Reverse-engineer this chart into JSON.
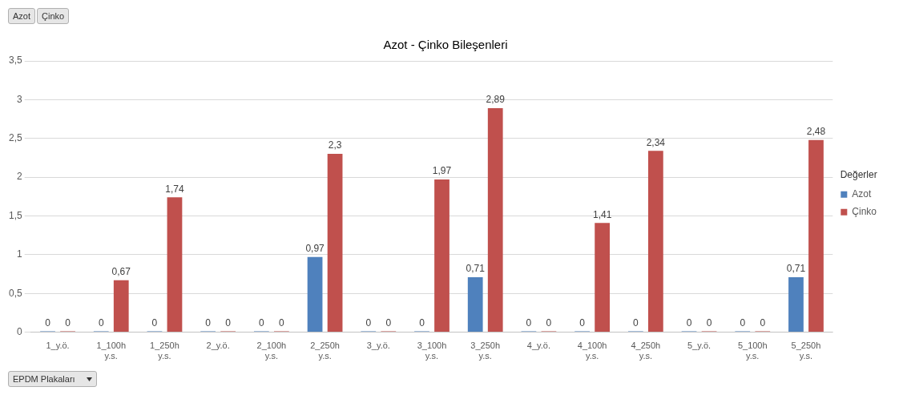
{
  "chart_data": {
    "type": "bar",
    "title": "Azot - Çinko Bileşenleri",
    "legend_title": "Değerler",
    "categories": [
      "1_y.ö.",
      "1_100h y.s.",
      "1_250h y.s.",
      "2_y.ö.",
      "2_100h y.s.",
      "2_250h y.s.",
      "3_y.ö.",
      "3_100h y.s.",
      "3_250h y.s.",
      "4_y.ö.",
      "4_100h y.s.",
      "4_250h y.s.",
      "5_y.ö.",
      "5_100h y.s.",
      "5_250h y.s."
    ],
    "series": [
      {
        "name": "Azot",
        "color": "#4f81bd",
        "values": [
          0,
          0,
          0,
          0,
          0,
          0.97,
          0,
          0,
          0.71,
          0,
          0,
          0,
          0,
          0,
          0.71
        ],
        "value_labels": [
          "0",
          "0",
          "0",
          "0",
          "0",
          "0,97",
          "0",
          "0",
          "0,71",
          "0",
          "0",
          "0",
          "0",
          "0",
          "0,71"
        ]
      },
      {
        "name": "Çinko",
        "color": "#c0504d",
        "values": [
          0,
          0.67,
          1.74,
          0,
          0,
          2.3,
          0,
          1.97,
          2.89,
          0,
          1.41,
          2.34,
          0,
          0,
          2.48
        ],
        "value_labels": [
          "0",
          "0,67",
          "1,74",
          "0",
          "0",
          "2,3",
          "0",
          "1,97",
          "2,89",
          "0",
          "1,41",
          "2,34",
          "0",
          "0",
          "2,48"
        ]
      }
    ],
    "ylim": [
      0,
      3.5
    ],
    "yticks": [
      0,
      {
        "value": 0.5,
        "label": "0,5"
      },
      1,
      {
        "value": 1.5,
        "label": "1,5"
      },
      2,
      {
        "value": 2.5,
        "label": "2,5"
      },
      3,
      {
        "value": 3.5,
        "label": "3,5"
      }
    ],
    "grid": "y",
    "legend": "right",
    "annotations": [
      "Azot",
      "Çinko",
      "EPDM Plakaları"
    ]
  }
}
